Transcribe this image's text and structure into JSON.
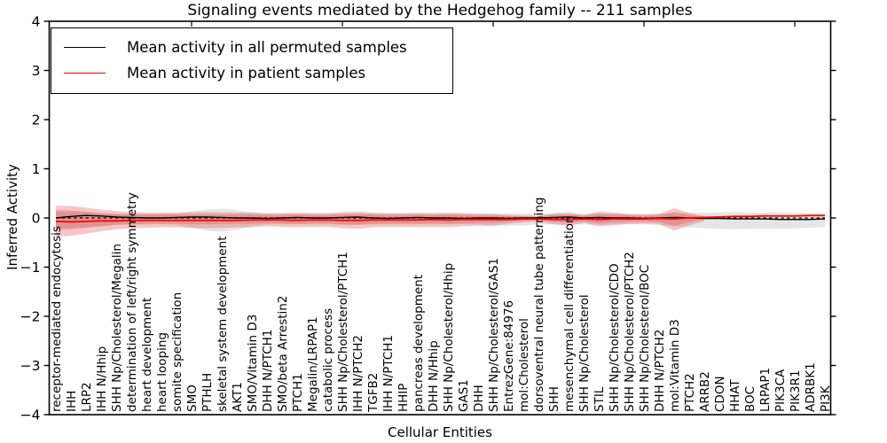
{
  "chart_data": {
    "type": "line",
    "title": "Signaling events mediated by the Hedgehog family -- 211 samples",
    "xlabel": "Cellular Entities",
    "ylabel": "Inferred Activity",
    "ylim": [
      -4,
      4
    ],
    "yticks": [
      -4,
      -3,
      -2,
      -1,
      0,
      1,
      2,
      3,
      4
    ],
    "grid": false,
    "legend_position": "upper left",
    "top_tick_indices": [
      9,
      19,
      29,
      39,
      49
    ],
    "categories": [
      "receptor-mediated endocytosis",
      "IHH",
      "LRP2",
      "IHH N/Hhip",
      "SHH Np/Cholesterol/Megalin",
      "determination of left/right symmetry",
      "heart development",
      "heart looping",
      "somite specification",
      "SMO",
      "PTHLH",
      "skeletal system development",
      "AKT1",
      "SMO/Vitamin D3",
      "DHH N/PTCH1",
      "SMO/beta Arrestin2",
      "PTCH1",
      "Megalin/LRPAP1",
      "catabolic process",
      "SHH Np/Cholesterol/PTCH1",
      "IHH N/PTCH2",
      "TGFB2",
      "IHH N/PTCH1",
      "HHIP",
      "pancreas development",
      "DHH N/Hhip",
      "SHH Np/Cholesterol/Hhip",
      "GAS1",
      "DHH",
      "SHH Np/Cholesterol/GAS1",
      "EntrezGene:84976",
      "mol:Cholesterol",
      "dorsoventral neural tube patterning",
      "SHH",
      "mesenchymal cell differentiation",
      "SHH Np/Cholesterol",
      "STIL",
      "SHH Np/Cholesterol/CDO",
      "SHH Np/Cholesterol/PTCH2",
      "SHH Np/Cholesterol/BOC",
      "DHH N/PTCH2",
      "mol:Vitamin D3",
      "PTCH2",
      "ARRB2",
      "CDON",
      "HHAT",
      "BOC",
      "LRPAP1",
      "PIK3CA",
      "PIK3R1",
      "ADRBK1",
      "PI3K"
    ],
    "series": [
      {
        "name": "Mean activity in all permuted samples",
        "color": "#000000",
        "line_style": "solid",
        "values": [
          0.0,
          0.03,
          0.05,
          0.04,
          0.02,
          0.01,
          0.0,
          0.0,
          0.01,
          0.02,
          0.02,
          0.01,
          0.0,
          0.0,
          -0.01,
          0.0,
          0.01,
          0.0,
          0.0,
          0.01,
          0.02,
          0.0,
          -0.01,
          0.0,
          0.01,
          0.0,
          0.0,
          -0.01,
          0.0,
          0.0,
          -0.01,
          0.0,
          0.0,
          0.01,
          0.02,
          0.0,
          0.01,
          0.0,
          0.0,
          -0.01,
          0.0,
          0.01,
          0.0,
          -0.01,
          -0.01,
          -0.02,
          -0.02,
          -0.02,
          -0.03,
          -0.03,
          -0.03,
          -0.02
        ]
      },
      {
        "name": "Mean activity in patient samples",
        "color": "#ff0000",
        "line_style": "solid",
        "values": [
          -0.07,
          -0.08,
          -0.07,
          -0.06,
          -0.06,
          -0.05,
          -0.05,
          -0.05,
          -0.05,
          -0.05,
          -0.05,
          -0.05,
          -0.05,
          -0.04,
          -0.04,
          -0.04,
          -0.05,
          -0.04,
          -0.04,
          -0.05,
          -0.05,
          -0.04,
          -0.04,
          -0.04,
          -0.04,
          -0.03,
          -0.04,
          -0.03,
          -0.03,
          -0.03,
          -0.03,
          -0.02,
          -0.02,
          -0.03,
          -0.03,
          -0.02,
          -0.03,
          -0.02,
          -0.02,
          -0.02,
          -0.01,
          -0.02,
          0.0,
          0.01,
          0.02,
          0.03,
          0.03,
          0.04,
          0.04,
          0.04,
          0.05,
          0.05
        ]
      }
    ],
    "reference_line": {
      "value": 0,
      "color": "#000000",
      "line_style": "dashed"
    },
    "bands": [
      {
        "name": "permuted-samples-spread",
        "color": "#9a9a9a",
        "opacity": 0.26,
        "upper": [
          0.12,
          0.12,
          0.11,
          0.09,
          0.08,
          0.08,
          0.08,
          0.08,
          0.09,
          0.13,
          0.17,
          0.19,
          0.16,
          0.11,
          0.08,
          0.08,
          0.08,
          0.08,
          0.08,
          0.09,
          0.09,
          0.08,
          0.08,
          0.08,
          0.08,
          0.08,
          0.08,
          0.08,
          0.08,
          0.09,
          0.1,
          0.09,
          0.08,
          0.08,
          0.08,
          0.08,
          0.09,
          0.08,
          0.08,
          0.08,
          0.09,
          0.1,
          0.11,
          0.11,
          0.11,
          0.12,
          0.11,
          0.11,
          0.11,
          0.1,
          0.1,
          0.09
        ],
        "lower": [
          -0.2,
          -0.2,
          -0.19,
          -0.16,
          -0.14,
          -0.13,
          -0.13,
          -0.13,
          -0.14,
          -0.2,
          -0.26,
          -0.28,
          -0.24,
          -0.17,
          -0.13,
          -0.13,
          -0.13,
          -0.13,
          -0.13,
          -0.14,
          -0.14,
          -0.13,
          -0.13,
          -0.13,
          -0.13,
          -0.13,
          -0.13,
          -0.13,
          -0.13,
          -0.15,
          -0.16,
          -0.15,
          -0.13,
          -0.13,
          -0.13,
          -0.13,
          -0.14,
          -0.13,
          -0.13,
          -0.13,
          -0.15,
          -0.17,
          -0.19,
          -0.21,
          -0.22,
          -0.23,
          -0.22,
          -0.22,
          -0.22,
          -0.21,
          -0.2,
          -0.18
        ]
      },
      {
        "name": "patient-samples-spread-outer",
        "color": "#dd4444",
        "opacity": 0.3,
        "upper": [
          0.25,
          0.24,
          0.21,
          0.17,
          0.14,
          0.12,
          0.11,
          0.11,
          0.11,
          0.12,
          0.12,
          0.11,
          0.11,
          0.11,
          0.1,
          0.1,
          0.11,
          0.1,
          0.1,
          0.12,
          0.13,
          0.11,
          0.1,
          0.1,
          0.11,
          0.1,
          0.11,
          0.1,
          0.09,
          0.08,
          0.06,
          0.05,
          0.04,
          0.1,
          0.12,
          0.06,
          0.13,
          0.11,
          0.08,
          0.07,
          0.08,
          0.2,
          0.1,
          0.04,
          null,
          null,
          null,
          null,
          null,
          null,
          null,
          null
        ],
        "lower": [
          -0.38,
          -0.36,
          -0.32,
          -0.27,
          -0.23,
          -0.21,
          -0.2,
          -0.19,
          -0.19,
          -0.2,
          -0.21,
          -0.2,
          -0.19,
          -0.19,
          -0.17,
          -0.18,
          -0.19,
          -0.18,
          -0.18,
          -0.21,
          -0.22,
          -0.19,
          -0.18,
          -0.18,
          -0.19,
          -0.18,
          -0.19,
          -0.17,
          -0.16,
          -0.16,
          -0.12,
          -0.09,
          -0.07,
          -0.13,
          -0.16,
          -0.1,
          -0.17,
          -0.15,
          -0.12,
          -0.11,
          -0.12,
          -0.26,
          -0.15,
          -0.06,
          null,
          null,
          null,
          null,
          null,
          null,
          null,
          null
        ]
      },
      {
        "name": "patient-samples-spread-inner",
        "color": "#dd4444",
        "opacity": 0.3,
        "upper": [
          0.16,
          0.15,
          0.13,
          0.1,
          0.08,
          0.07,
          0.07,
          0.07,
          0.07,
          0.07,
          0.07,
          0.07,
          0.07,
          0.07,
          0.06,
          0.06,
          0.07,
          0.06,
          0.06,
          0.07,
          0.08,
          0.07,
          0.06,
          0.06,
          0.07,
          0.06,
          0.07,
          0.06,
          0.05,
          0.05,
          0.04,
          0.03,
          0.02,
          0.06,
          0.07,
          0.04,
          0.08,
          0.07,
          0.05,
          0.04,
          0.05,
          0.12,
          0.06,
          0.02,
          null,
          null,
          null,
          null,
          null,
          null,
          null,
          null
        ],
        "lower": [
          -0.24,
          -0.23,
          -0.2,
          -0.17,
          -0.14,
          -0.13,
          -0.12,
          -0.12,
          -0.12,
          -0.13,
          -0.13,
          -0.12,
          -0.12,
          -0.12,
          -0.11,
          -0.11,
          -0.12,
          -0.11,
          -0.11,
          -0.13,
          -0.14,
          -0.12,
          -0.11,
          -0.11,
          -0.12,
          -0.11,
          -0.12,
          -0.11,
          -0.1,
          -0.1,
          -0.08,
          -0.06,
          -0.04,
          -0.08,
          -0.1,
          -0.06,
          -0.11,
          -0.09,
          -0.07,
          -0.07,
          -0.08,
          -0.16,
          -0.09,
          -0.03,
          null,
          null,
          null,
          null,
          null,
          null,
          null,
          null
        ]
      }
    ]
  }
}
